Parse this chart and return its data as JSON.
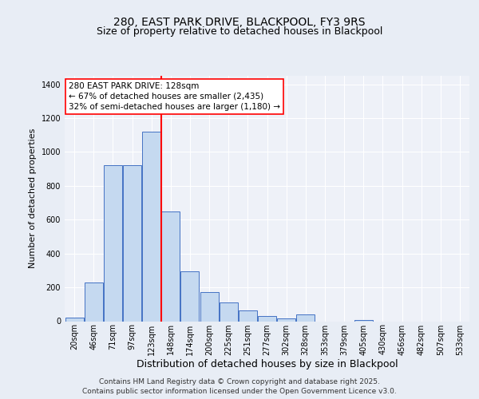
{
  "title1": "280, EAST PARK DRIVE, BLACKPOOL, FY3 9RS",
  "title2": "Size of property relative to detached houses in Blackpool",
  "xlabel": "Distribution of detached houses by size in Blackpool",
  "ylabel": "Number of detached properties",
  "categories": [
    "20sqm",
    "46sqm",
    "71sqm",
    "97sqm",
    "123sqm",
    "148sqm",
    "174sqm",
    "200sqm",
    "225sqm",
    "251sqm",
    "277sqm",
    "302sqm",
    "328sqm",
    "353sqm",
    "379sqm",
    "405sqm",
    "430sqm",
    "456sqm",
    "482sqm",
    "507sqm",
    "533sqm"
  ],
  "bar_heights": [
    20,
    230,
    920,
    920,
    1120,
    650,
    295,
    170,
    110,
    65,
    30,
    15,
    40,
    0,
    0,
    5,
    0,
    0,
    0,
    0,
    0
  ],
  "bar_color": "#c5d9f0",
  "bar_edge_color": "#4472c4",
  "vline_x": 4.5,
  "vline_color": "red",
  "annotation_text": "280 EAST PARK DRIVE: 128sqm\n← 67% of detached houses are smaller (2,435)\n32% of semi-detached houses are larger (1,180) →",
  "annotation_box_color": "white",
  "annotation_box_edge": "red",
  "ylim": [
    0,
    1450
  ],
  "yticks": [
    0,
    200,
    400,
    600,
    800,
    1000,
    1200,
    1400
  ],
  "bg_color": "#e8edf5",
  "plot_bg_color": "#eef1f8",
  "footer": "Contains HM Land Registry data © Crown copyright and database right 2025.\nContains public sector information licensed under the Open Government Licence v3.0.",
  "title_fontsize": 10,
  "subtitle_fontsize": 9,
  "footer_fontsize": 6.5,
  "ylabel_fontsize": 8,
  "xlabel_fontsize": 9,
  "tick_fontsize": 7
}
